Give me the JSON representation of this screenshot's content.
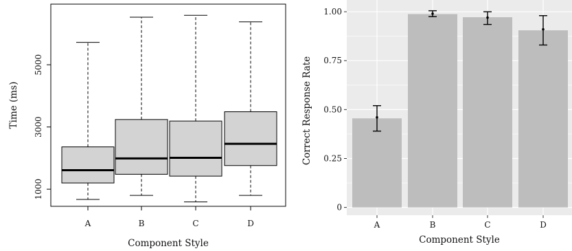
{
  "chart_data": [
    {
      "type": "box",
      "title": "",
      "xlabel": "Component Style",
      "ylabel": "Time (ms)",
      "categories": [
        "A",
        "B",
        "C",
        "D"
      ],
      "ylim": [
        450,
        6950
      ],
      "yticks": [
        1000,
        3000,
        5000
      ],
      "ytick_labels": [
        "1000",
        "3000",
        "5000"
      ],
      "grid": false,
      "boxes": [
        {
          "category": "A",
          "whisker_low": 670,
          "q1": 1200,
          "median": 1610,
          "q3": 2360,
          "whisker_high": 5720
        },
        {
          "category": "B",
          "whisker_low": 800,
          "q1": 1480,
          "median": 1990,
          "q3": 3240,
          "whisker_high": 6530
        },
        {
          "category": "C",
          "whisker_low": 590,
          "q1": 1420,
          "median": 2010,
          "q3": 3190,
          "whisker_high": 6590
        },
        {
          "category": "D",
          "whisker_low": 800,
          "q1": 1760,
          "median": 2460,
          "q3": 3490,
          "whisker_high": 6380
        }
      ],
      "colors": {
        "box_fill": "#d3d3d3",
        "stroke": "#000000"
      }
    },
    {
      "type": "bar",
      "title": "",
      "xlabel": "Component Style",
      "ylabel": "Correct Response Rate",
      "categories": [
        "A",
        "B",
        "C",
        "D"
      ],
      "values": [
        0.455,
        0.988,
        0.972,
        0.905
      ],
      "error_low": [
        0.39,
        0.975,
        0.935,
        0.83
      ],
      "error_high": [
        0.52,
        1.005,
        1.0,
        0.98
      ],
      "point_estimate": [
        0.46,
        0.99,
        0.97,
        0.91
      ],
      "ylim": [
        -0.04,
        1.06
      ],
      "yticks": [
        0,
        0.25,
        0.5,
        0.75,
        1.0
      ],
      "ytick_labels": [
        "0",
        "0.25",
        "0.50",
        "0.75",
        "1.00"
      ],
      "grid": true,
      "colors": {
        "bar_fill": "#bdbdbd",
        "panel_bg": "#ebebeb",
        "grid": "#ffffff",
        "error_bar": "#000000"
      }
    }
  ]
}
